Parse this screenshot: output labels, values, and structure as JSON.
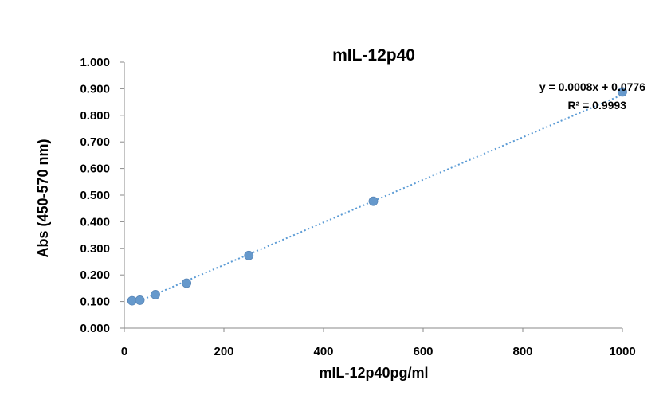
{
  "chart_data": {
    "type": "scatter",
    "title": "mIL-12p40",
    "xlabel": "mIL-12p40pg/ml",
    "ylabel": "Abs (450-570 nm)",
    "xlim": [
      0,
      1000
    ],
    "ylim": [
      0,
      1.0
    ],
    "x_ticks": [
      "0",
      "200",
      "400",
      "600",
      "800",
      "1000"
    ],
    "y_ticks": [
      "0.000",
      "0.100",
      "0.200",
      "0.300",
      "0.400",
      "0.500",
      "0.600",
      "0.700",
      "0.800",
      "0.900",
      "1.000"
    ],
    "grid": false,
    "series": [
      {
        "x": [
          15.6,
          31.25,
          62.5,
          125,
          250,
          500,
          1000
        ],
        "y": [
          0.103,
          0.105,
          0.126,
          0.169,
          0.273,
          0.477,
          0.888
        ],
        "color": "#6699CC"
      }
    ],
    "trendline": {
      "type": "linear",
      "slope": 0.0008,
      "intercept": 0.0776,
      "color": "#5B9BD5",
      "style": "dotted",
      "equation": "y = 0.0008x + 0.0776",
      "r_squared": "R² = 0.9993"
    }
  }
}
